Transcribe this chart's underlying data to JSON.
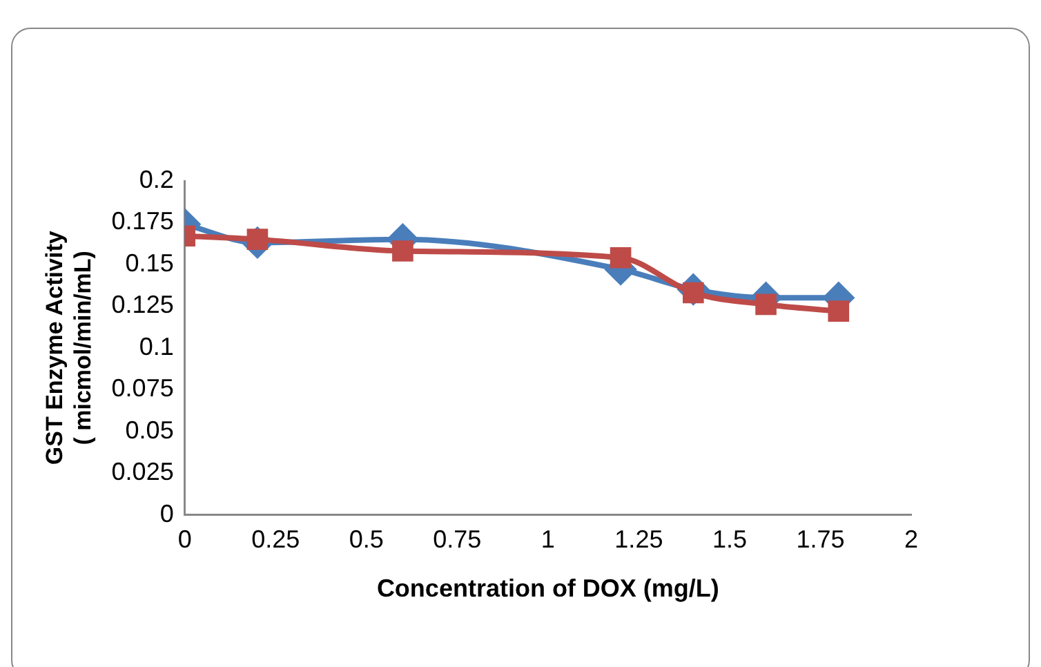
{
  "chart_data": {
    "type": "line",
    "xlabel": "Concentration of DOX (mg/L)",
    "ylabel": "GST Enzyme Activity\n( micmol/min/mL)",
    "x": [
      0,
      0.2,
      0.6,
      1.2,
      1.4,
      1.6,
      1.8
    ],
    "series": [
      {
        "color": "#4a7ebb",
        "marker": "diamond",
        "values": [
          0.174,
          0.163,
          0.165,
          0.147,
          0.135,
          0.13,
          0.13
        ]
      },
      {
        "color": "#be4b48",
        "marker": "square",
        "values": [
          0.167,
          0.165,
          0.158,
          0.154,
          0.133,
          0.126,
          0.122
        ]
      }
    ],
    "xlim": [
      0,
      2
    ],
    "xticks": [
      0,
      0.25,
      0.5,
      0.75,
      1,
      1.25,
      1.5,
      1.75,
      2
    ],
    "ylim": [
      0,
      0.2
    ],
    "yticks": [
      0,
      0.025,
      0.05,
      0.075,
      0.1,
      0.125,
      0.15,
      0.175,
      0.2
    ],
    "grid": false,
    "legend": false,
    "line_style": "solid"
  }
}
